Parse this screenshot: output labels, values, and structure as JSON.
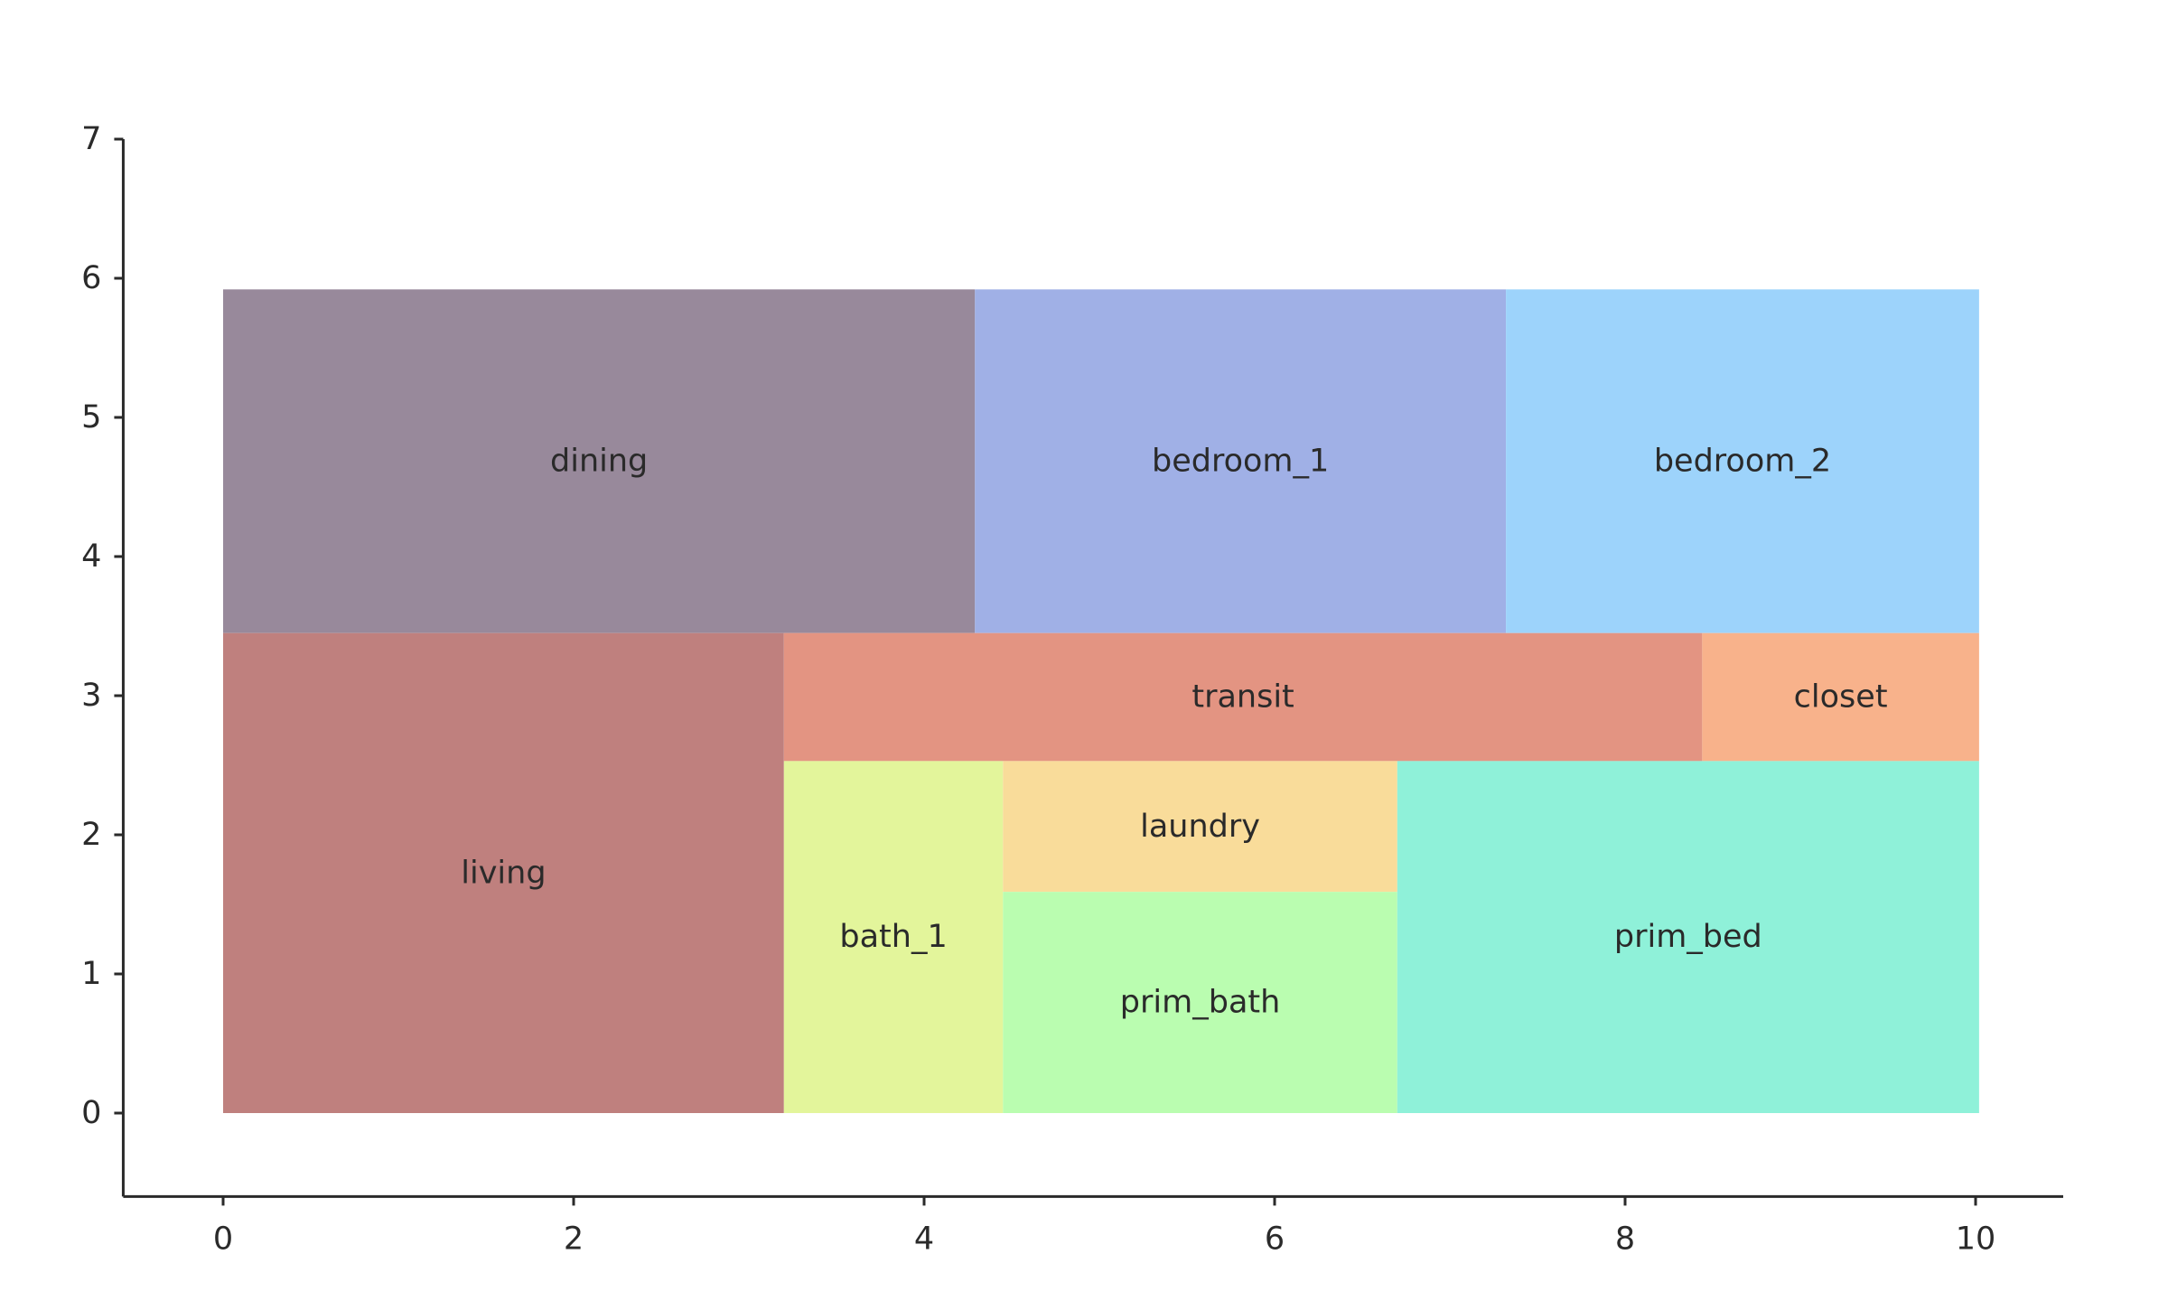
{
  "chart_data": {
    "type": "rectangles",
    "title": "",
    "xlabel": "",
    "ylabel": "",
    "xlim": [
      -0.57,
      10.5
    ],
    "ylim": [
      -0.6,
      7
    ],
    "x_ticks": [
      0,
      2,
      4,
      6,
      8,
      10
    ],
    "y_ticks": [
      0,
      1,
      2,
      3,
      4,
      5,
      6,
      7
    ],
    "grid": false,
    "legend": "none",
    "rooms": [
      {
        "name": "dining",
        "x0": 0.0,
        "x1": 4.29,
        "y0": 3.45,
        "y1": 5.92,
        "color": "#98899b"
      },
      {
        "name": "bedroom_1",
        "x0": 4.29,
        "x1": 7.32,
        "y0": 3.45,
        "y1": 5.92,
        "color": "#a0b0e6"
      },
      {
        "name": "bedroom_2",
        "x0": 7.32,
        "x1": 10.02,
        "y0": 3.45,
        "y1": 5.92,
        "color": "#9dd3fb"
      },
      {
        "name": "living",
        "x0": 0.0,
        "x1": 3.2,
        "y0": 0.0,
        "y1": 3.45,
        "color": "#bf807e"
      },
      {
        "name": "transit",
        "x0": 3.2,
        "x1": 8.44,
        "y0": 2.53,
        "y1": 3.45,
        "color": "#e39482"
      },
      {
        "name": "closet",
        "x0": 8.44,
        "x1": 10.02,
        "y0": 2.53,
        "y1": 3.45,
        "color": "#f8b28b"
      },
      {
        "name": "bath_1",
        "x0": 3.2,
        "x1": 4.45,
        "y0": 0.0,
        "y1": 2.53,
        "color": "#e3f59b"
      },
      {
        "name": "laundry",
        "x0": 4.45,
        "x1": 6.7,
        "y0": 1.59,
        "y1": 2.53,
        "color": "#f9dc9a"
      },
      {
        "name": "prim_bath",
        "x0": 4.45,
        "x1": 6.7,
        "y0": 0.0,
        "y1": 1.59,
        "color": "#bafdb0"
      },
      {
        "name": "prim_bed",
        "x0": 6.7,
        "x1": 10.02,
        "y0": 0.0,
        "y1": 2.53,
        "color": "#8ff1d9"
      }
    ]
  }
}
